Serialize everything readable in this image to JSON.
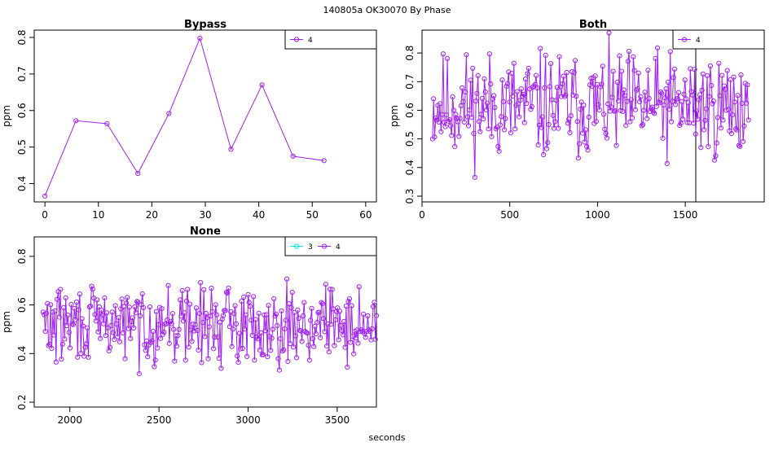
{
  "page": {
    "title": "140805a    OK30070   By Phase",
    "xlabel": "seconds"
  },
  "colors": {
    "series4": "#a020f0",
    "series3": "#00e5ee",
    "axis": "#000000"
  },
  "chart_data": [
    {
      "type": "line",
      "title": "Bypass",
      "ylabel": "ppm",
      "xlim": [
        -2,
        62
      ],
      "ylim": [
        0.35,
        0.82
      ],
      "xticks": [
        0,
        10,
        20,
        30,
        40,
        50,
        60
      ],
      "yticks": [
        0.4,
        0.5,
        0.6,
        0.7,
        0.8
      ],
      "legend": {
        "placement": "top-right",
        "entries": [
          {
            "name": "4",
            "color": "#a020f0"
          }
        ]
      },
      "series": [
        {
          "name": "4",
          "color": "#a020f0",
          "x": [
            0,
            5.8,
            11.6,
            17.4,
            23.2,
            29,
            34.8,
            40.6,
            46.4,
            52.2
          ],
          "y": [
            0.366,
            0.572,
            0.564,
            0.428,
            0.592,
            0.798,
            0.494,
            0.67,
            0.475,
            0.463
          ]
        }
      ]
    },
    {
      "type": "line",
      "title": "Both",
      "ylabel": "ppm",
      "xlim": [
        0,
        1950
      ],
      "ylim": [
        0.28,
        0.88
      ],
      "xticks": [
        0,
        500,
        1000,
        1500
      ],
      "yticks": [
        0.3,
        0.4,
        0.5,
        0.6,
        0.7,
        0.8
      ],
      "vline": 1560,
      "legend": {
        "placement": "top-right",
        "entries": [
          {
            "name": "4",
            "color": "#a020f0"
          }
        ]
      },
      "series": [
        {
          "name": "4",
          "color": "#a020f0",
          "generated": true,
          "x_start": 60,
          "x_end": 1860,
          "n": 300,
          "center": 0.615,
          "spread": 0.13,
          "min": 0.3,
          "max": 0.87,
          "seed": 11
        }
      ]
    },
    {
      "type": "line",
      "title": "None",
      "ylabel": "ppm",
      "xlim": [
        1800,
        3720
      ],
      "ylim": [
        0.18,
        0.88
      ],
      "xticks": [
        2000,
        2500,
        3000,
        3500
      ],
      "yticks": [
        0.2,
        0.4,
        0.6,
        0.8
      ],
      "legend": {
        "placement": "top-right",
        "entries": [
          {
            "name": "3",
            "color": "#00e5ee"
          },
          {
            "name": "4",
            "color": "#a020f0"
          }
        ]
      },
      "series": [
        {
          "name": "4",
          "color": "#a020f0",
          "generated": true,
          "x_start": 1850,
          "x_end": 3720,
          "n": 310,
          "center": 0.52,
          "spread": 0.11,
          "min": 0.21,
          "max": 0.85,
          "seed": 29
        }
      ]
    }
  ]
}
